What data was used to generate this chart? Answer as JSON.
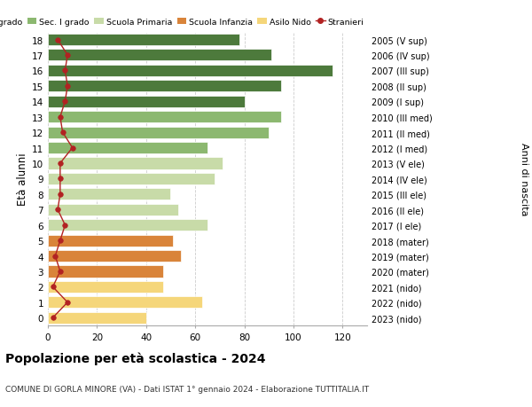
{
  "ages": [
    0,
    1,
    2,
    3,
    4,
    5,
    6,
    7,
    8,
    9,
    10,
    11,
    12,
    13,
    14,
    15,
    16,
    17,
    18
  ],
  "bar_values": [
    40,
    63,
    47,
    47,
    54,
    51,
    65,
    53,
    50,
    68,
    71,
    65,
    90,
    95,
    80,
    95,
    116,
    91,
    78
  ],
  "bar_colors": [
    "#f5d67a",
    "#f5d67a",
    "#f5d67a",
    "#d9843a",
    "#d9843a",
    "#d9843a",
    "#c8dba8",
    "#c8dba8",
    "#c8dba8",
    "#c8dba8",
    "#c8dba8",
    "#8cb870",
    "#8cb870",
    "#8cb870",
    "#4d7a3c",
    "#4d7a3c",
    "#4d7a3c",
    "#4d7a3c",
    "#4d7a3c"
  ],
  "stranieri_values": [
    2,
    8,
    2,
    5,
    3,
    5,
    7,
    4,
    5,
    5,
    5,
    10,
    6,
    5,
    7,
    8,
    7,
    8,
    4
  ],
  "right_labels": [
    "2023 (nido)",
    "2022 (nido)",
    "2021 (nido)",
    "2020 (mater)",
    "2019 (mater)",
    "2018 (mater)",
    "2017 (I ele)",
    "2016 (II ele)",
    "2015 (III ele)",
    "2014 (IV ele)",
    "2013 (V ele)",
    "2012 (I med)",
    "2011 (II med)",
    "2010 (III med)",
    "2009 (I sup)",
    "2008 (II sup)",
    "2007 (III sup)",
    "2006 (IV sup)",
    "2005 (V sup)"
  ],
  "legend_labels": [
    "Sec. II grado",
    "Sec. I grado",
    "Scuola Primaria",
    "Scuola Infanzia",
    "Asilo Nido",
    "Stranieri"
  ],
  "legend_colors": [
    "#4d7a3c",
    "#8cb870",
    "#c8dba8",
    "#d9843a",
    "#f5d67a",
    "#b22222"
  ],
  "ylabel_left": "Età alunni",
  "ylabel_right": "Anni di nascita",
  "title": "Popolazione per età scolastica - 2024",
  "subtitle": "COMUNE DI GORLA MINORE (VA) - Dati ISTAT 1° gennaio 2024 - Elaborazione TUTTITALIA.IT",
  "xlim": [
    0,
    130
  ],
  "xticks": [
    0,
    20,
    40,
    60,
    80,
    100,
    120
  ],
  "background_color": "#ffffff",
  "grid_color": "#cccccc",
  "stranieri_line_color": "#b22222",
  "stranieri_marker_color": "#b22222"
}
